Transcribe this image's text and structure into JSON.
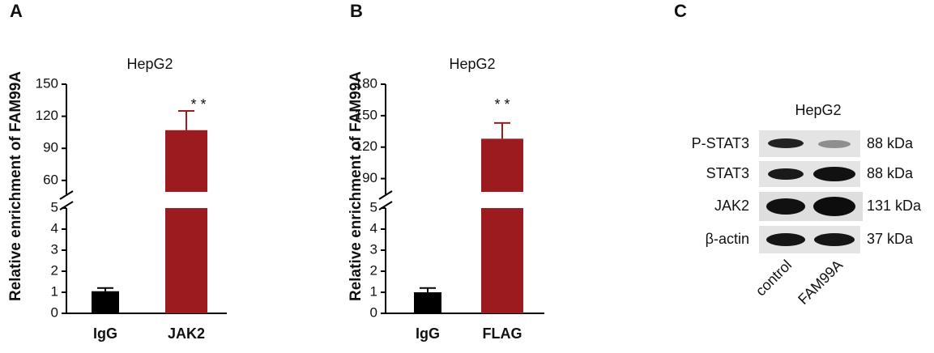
{
  "panels": [
    "A",
    "B",
    "C"
  ],
  "chart_data": [
    {
      "type": "bar",
      "title": "HepG2",
      "y_label": "Relative enrichment of FAM99A",
      "categories": [
        "IgG",
        "JAK2"
      ],
      "values": [
        1.05,
        107
      ],
      "errors": [
        0.15,
        18
      ],
      "colors": [
        "#000000",
        "#9b1b1e"
      ],
      "annotations": [
        "* *"
      ],
      "ylim_lower": [
        0,
        5
      ],
      "yticks_lower": [
        0,
        1,
        2,
        3,
        4,
        5
      ],
      "ylim_upper": [
        47,
        150
      ],
      "yticks_upper": [
        60,
        90,
        120,
        150
      ]
    },
    {
      "type": "bar",
      "title": "HepG2",
      "y_label": "Relative enrichment of FAM99A",
      "categories": [
        "IgG",
        "FLAG"
      ],
      "values": [
        1.0,
        128
      ],
      "errors": [
        0.2,
        15
      ],
      "colors": [
        "#000000",
        "#9b1b1e"
      ],
      "annotations": [
        "* *"
      ],
      "ylim_lower": [
        0,
        5
      ],
      "yticks_lower": [
        0,
        1,
        2,
        3,
        4,
        5
      ],
      "ylim_upper": [
        75,
        180
      ],
      "yticks_upper": [
        90,
        120,
        150,
        180
      ]
    }
  ],
  "blot": {
    "title": "HepG2",
    "rows": [
      {
        "label": "P-STAT3",
        "size": "88 kDa"
      },
      {
        "label": "STAT3",
        "size": "88 kDa"
      },
      {
        "label": "JAK2",
        "size": "131 kDa"
      },
      {
        "label": "β-actin",
        "size": "37 kDa"
      }
    ],
    "lanes": [
      "control",
      "FAM99A"
    ]
  }
}
